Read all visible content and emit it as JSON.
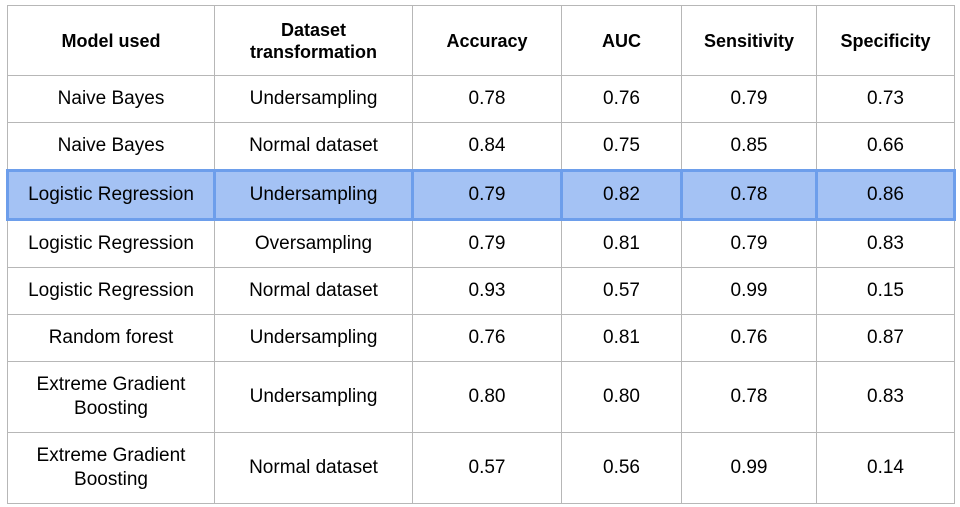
{
  "table": {
    "headers": [
      "Model used",
      "Dataset transformation",
      "Accuracy",
      "AUC",
      "Sensitivity",
      "Specificity"
    ],
    "rows": [
      {
        "model": "Naive Bayes",
        "transformation": "Undersampling",
        "accuracy": "0.78",
        "auc": "0.76",
        "sensitivity": "0.79",
        "specificity": "0.73"
      },
      {
        "model": "Naive Bayes",
        "transformation": "Normal dataset",
        "accuracy": "0.84",
        "auc": "0.75",
        "sensitivity": "0.85",
        "specificity": "0.66"
      },
      {
        "model": "Logistic Regression",
        "transformation": "Undersampling",
        "accuracy": "0.79",
        "auc": "0.82",
        "sensitivity": "0.78",
        "specificity": "0.86"
      },
      {
        "model": "Logistic Regression",
        "transformation": "Oversampling",
        "accuracy": "0.79",
        "auc": "0.81",
        "sensitivity": "0.79",
        "specificity": "0.83"
      },
      {
        "model": "Logistic Regression",
        "transformation": "Normal dataset",
        "accuracy": "0.93",
        "auc": "0.57",
        "sensitivity": "0.99",
        "specificity": "0.15"
      },
      {
        "model": "Random forest",
        "transformation": "Undersampling",
        "accuracy": "0.76",
        "auc": "0.81",
        "sensitivity": "0.76",
        "specificity": "0.87"
      },
      {
        "model": "Extreme Gradient Boosting",
        "transformation": "Undersampling",
        "accuracy": "0.80",
        "auc": "0.80",
        "sensitivity": "0.78",
        "specificity": "0.83"
      },
      {
        "model": "Extreme Gradient Boosting",
        "transformation": "Normal dataset",
        "accuracy": "0.57",
        "auc": "0.56",
        "sensitivity": "0.99",
        "specificity": "0.14"
      }
    ],
    "highlight_row_index": 2,
    "colors": {
      "highlight_fill": "#a4c2f4",
      "highlight_border": "#6d9eeb",
      "grid_border": "#b7b7b7"
    }
  }
}
